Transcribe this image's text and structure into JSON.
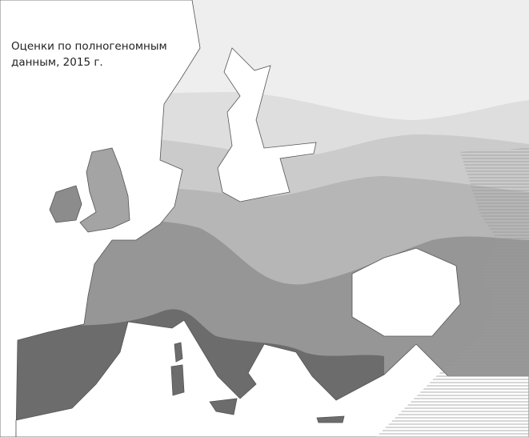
{
  "caption": {
    "line1": "Оценки по полногеномным",
    "line2": "данным, 2015 г."
  },
  "colors": {
    "sea": "#ffffff",
    "band_1": "#eeeeee",
    "band_2": "#dedede",
    "band_3": "#cbcbcb",
    "band_4": "#b6b6b6",
    "band_5": "#969696",
    "band_6": "#6c6c6c",
    "hatch": "#9a9a9a",
    "coast": "#555555"
  }
}
